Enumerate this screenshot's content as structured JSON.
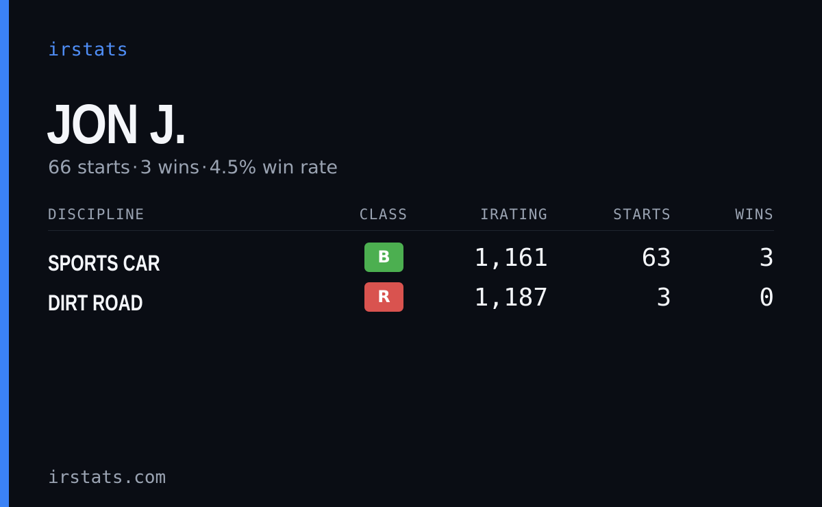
{
  "brand": "irstats",
  "driver": {
    "name": "JON J.",
    "starts_text": "66 starts",
    "wins_text": "3 wins",
    "win_rate_text": "4.5% win rate",
    "separator": "·"
  },
  "table": {
    "headers": {
      "discipline": "DISCIPLINE",
      "class": "CLASS",
      "irating": "IRATING",
      "starts": "STARTS",
      "wins": "WINS"
    },
    "rows": [
      {
        "discipline": "SPORTS CAR",
        "class": "B",
        "class_color": "#4caf50",
        "irating": "1,161",
        "starts": "63",
        "wins": "3"
      },
      {
        "discipline": "DIRT ROAD",
        "class": "R",
        "class_color": "#d9534f",
        "irating": "1,187",
        "starts": "3",
        "wins": "0"
      }
    ]
  },
  "footer": "irstats.com",
  "colors": {
    "accent": "#3b82f6",
    "background": "#0a0d14"
  }
}
